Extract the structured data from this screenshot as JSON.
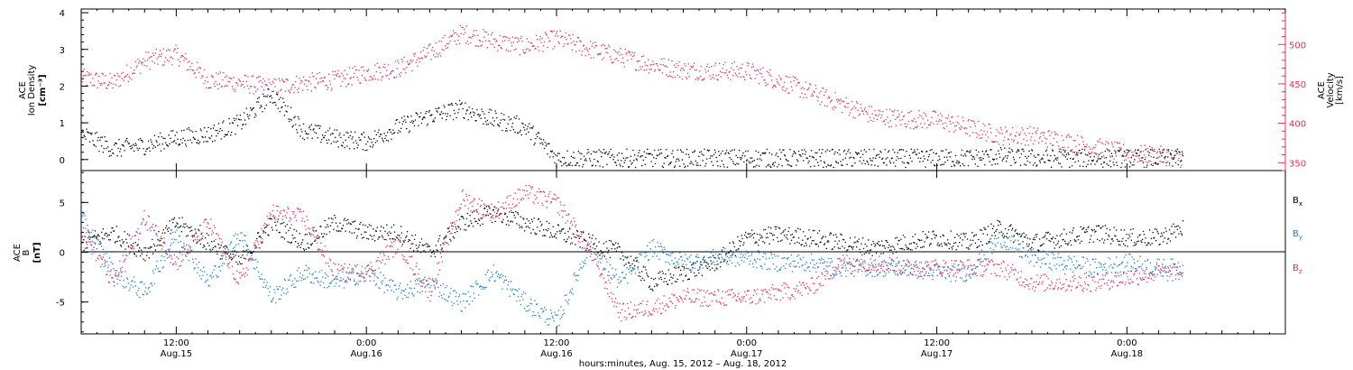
{
  "colors": {
    "axis": "#000000",
    "bx": "#000000",
    "by": "#1a7fd4",
    "bz": "#e0305a",
    "velocity": "#e0305a",
    "density": "#000000"
  },
  "x_axis": {
    "label": "hours:minutes, Aug. 15, 2012 – Aug. 18, 2012",
    "ticks": [
      {
        "hour": 12,
        "time": "12:00",
        "date": "Aug.15"
      },
      {
        "hour": 24,
        "time": "0:00",
        "date": "Aug.16"
      },
      {
        "hour": 36,
        "time": "12:00",
        "date": "Aug.16"
      },
      {
        "hour": 48,
        "time": "0:00",
        "date": "Aug.17"
      },
      {
        "hour": 60,
        "time": "12:00",
        "date": "Aug.17"
      },
      {
        "hour": 72,
        "time": "0:00",
        "date": "Aug.18"
      }
    ]
  },
  "top_panel": {
    "left_label": [
      "ACE",
      "Ion Density"
    ],
    "left_units": "[cm⁻³]",
    "right_label": [
      "ACE",
      "Velocity"
    ],
    "right_units": "[km/s]",
    "left_ticks": [
      "0",
      "1",
      "2",
      "3",
      "4"
    ],
    "right_ticks": [
      "350",
      "400",
      "450",
      "500"
    ]
  },
  "bottom_panel": {
    "label": [
      "ACE",
      "B"
    ],
    "units": "[nT]",
    "ticks": [
      "-5",
      "0",
      "5"
    ],
    "legend": [
      {
        "key": "bx",
        "base": "B",
        "sub": "x"
      },
      {
        "key": "by",
        "base": "B",
        "sub": "y"
      },
      {
        "key": "bz",
        "base": "B",
        "sub": "z"
      }
    ]
  },
  "chart_data": [
    {
      "type": "scatter",
      "title": "",
      "xlabel": "hours:minutes, Aug. 15, 2012 – Aug. 18, 2012",
      "xlim_hours": [
        6,
        82
      ],
      "series": [
        {
          "name": "ACE Velocity",
          "axis": "right",
          "ylim": [
            340,
            545
          ],
          "x_hours": [
            6,
            8,
            10,
            12,
            14,
            16,
            18,
            20,
            22,
            24,
            26,
            28,
            30,
            32,
            34,
            36,
            38,
            40,
            42,
            44,
            46,
            48,
            50,
            52,
            54,
            56,
            58,
            60,
            62,
            64,
            66,
            68,
            70,
            72,
            74,
            75.5
          ],
          "values": [
            458,
            452,
            480,
            488,
            455,
            452,
            446,
            452,
            455,
            465,
            470,
            490,
            515,
            505,
            498,
            508,
            495,
            485,
            475,
            468,
            467,
            467,
            455,
            440,
            425,
            410,
            406,
            405,
            395,
            385,
            385,
            378,
            370,
            362,
            360,
            356
          ]
        },
        {
          "name": "ACE Ion Density",
          "axis": "left",
          "ylim": [
            -0.3,
            4.1
          ],
          "x_hours": [
            6,
            8,
            10,
            12,
            14,
            16,
            18,
            20,
            22,
            24,
            26,
            28,
            30,
            32,
            34,
            36,
            38,
            40,
            42,
            44,
            46,
            48,
            50,
            52,
            54,
            56,
            58,
            60,
            62,
            64,
            66,
            68,
            70,
            72,
            74,
            75.5
          ],
          "values": [
            0.7,
            0.3,
            0.4,
            0.6,
            0.7,
            1.0,
            1.8,
            0.8,
            0.6,
            0.5,
            0.9,
            1.2,
            1.4,
            1.1,
            0.9,
            0.05,
            0.05,
            0.05,
            0.05,
            0.05,
            0.05,
            0.05,
            0.05,
            0.05,
            0.05,
            0.05,
            0.05,
            0.05,
            0.05,
            0.1,
            0.05,
            0.05,
            0.05,
            0.05,
            0.05,
            0.05
          ]
        }
      ]
    },
    {
      "type": "scatter",
      "title": "",
      "xlabel": "hours:minutes, Aug. 15, 2012 – Aug. 18, 2012",
      "xlim_hours": [
        6,
        82
      ],
      "ylim": [
        -8.2,
        8.2
      ],
      "series": [
        {
          "name": "Bx",
          "x_hours": [
            6,
            8,
            10,
            12,
            14,
            16,
            18,
            20,
            22,
            24,
            26,
            28,
            30,
            32,
            34,
            36,
            38,
            40,
            42,
            44,
            46,
            48,
            50,
            52,
            54,
            56,
            58,
            60,
            62,
            64,
            66,
            68,
            70,
            72,
            74,
            75.5
          ],
          "values": [
            1.0,
            2.0,
            0.0,
            3.0,
            1.0,
            -1.0,
            3.0,
            1.0,
            3.0,
            2.0,
            2.0,
            0.0,
            3.0,
            4.0,
            3.0,
            2.0,
            1.0,
            0.0,
            -3.0,
            -2.0,
            -1.0,
            1.5,
            1.8,
            1.5,
            1.0,
            0.5,
            1.0,
            1.5,
            1.0,
            2.5,
            1.0,
            1.5,
            2.0,
            1.5,
            1.5,
            2.5
          ]
        },
        {
          "name": "By",
          "x_hours": [
            6,
            8,
            10,
            12,
            14,
            16,
            18,
            20,
            22,
            24,
            26,
            28,
            30,
            32,
            34,
            36,
            38,
            40,
            42,
            44,
            46,
            48,
            50,
            52,
            54,
            56,
            58,
            60,
            62,
            64,
            66,
            68,
            70,
            72,
            74,
            75.5
          ],
          "values": [
            3.5,
            -2.0,
            -4.0,
            2.0,
            -3.0,
            2.0,
            -4.5,
            -2.0,
            -3.0,
            -2.0,
            -4.0,
            -3.0,
            -5.0,
            -2.0,
            -5.0,
            -7.0,
            0.5,
            -3.0,
            0.5,
            -1.0,
            -0.5,
            -0.5,
            -1.0,
            -1.0,
            -1.5,
            -1.5,
            -1.5,
            -2.0,
            -2.0,
            1.5,
            -0.5,
            -1.0,
            -1.5,
            -1.0,
            -1.5,
            -1.5
          ]
        },
        {
          "name": "Bz",
          "x_hours": [
            6,
            8,
            10,
            12,
            14,
            16,
            18,
            20,
            22,
            24,
            26,
            28,
            30,
            32,
            34,
            36,
            38,
            40,
            42,
            44,
            46,
            48,
            50,
            52,
            54,
            56,
            58,
            60,
            62,
            64,
            66,
            68,
            70,
            72,
            74,
            75.5
          ],
          "values": [
            2.5,
            -3.0,
            3.5,
            -1.0,
            3.0,
            -3.0,
            4.0,
            3.5,
            -2.0,
            -2.0,
            1.0,
            -4.0,
            5.5,
            4.0,
            6.0,
            5.0,
            0.5,
            -6.0,
            -5.5,
            -4.5,
            -4.5,
            -4.5,
            -4.0,
            -3.5,
            -1.0,
            -1.0,
            -1.5,
            -1.5,
            -1.5,
            -1.5,
            -3.0,
            -3.0,
            -3.0,
            -2.5,
            -2.0,
            -2.0
          ]
        }
      ]
    }
  ]
}
